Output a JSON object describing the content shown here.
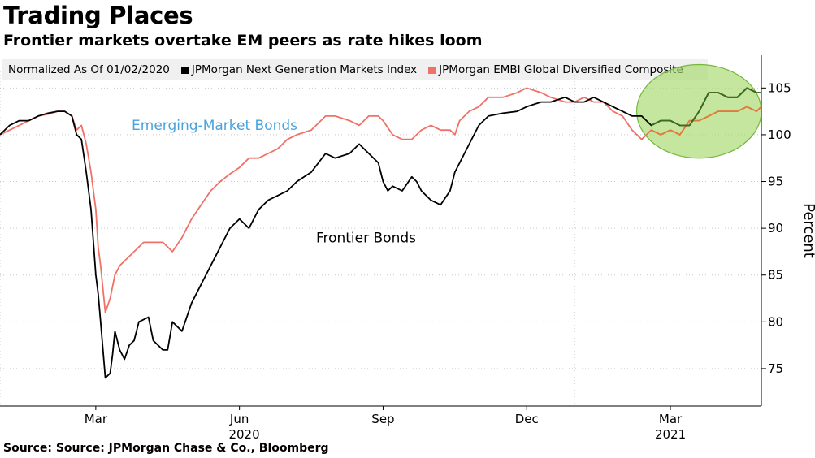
{
  "title": "Trading Places",
  "subtitle": "Frontier markets overtake EM peers as rate hikes loom",
  "source": "Source: Source: JPMorgan Chase & Co., Bloomberg",
  "legend": {
    "note": "Normalized As Of 01/02/2020",
    "items": [
      {
        "label": "JPMorgan Next Generation Markets Index",
        "color": "#000000"
      },
      {
        "label": "JPMorgan EMBI Global Diversified Composite",
        "color": "#f07167"
      }
    ]
  },
  "colors": {
    "frontier": "#000000",
    "em": "#f07167",
    "em_annotation": "#4aa3df",
    "highlight_fill": "#a6d96a",
    "highlight_stroke": "#74b83a",
    "frontier_highlighted": "#3d6b1f",
    "em_highlighted": "#e07b39"
  },
  "chart_data": {
    "type": "line",
    "title": "Trading Places",
    "subtitle": "Frontier markets overtake EM peers as rate hikes loom",
    "ylabel": "Percent",
    "ylim": [
      71,
      108.5
    ],
    "y_ticks": [
      75,
      80,
      85,
      90,
      95,
      100,
      105
    ],
    "y_axis_position": "right",
    "grid": "horizontal dotted",
    "x_unit": "months since 2020-01-01",
    "xlim": [
      0,
      15.9
    ],
    "x_ticks": [
      {
        "x": 2,
        "label": "Mar",
        "year": "2020"
      },
      {
        "x": 5,
        "label": "Jun",
        "year": ""
      },
      {
        "x": 8,
        "label": "Sep",
        "year": ""
      },
      {
        "x": 11,
        "label": "Dec",
        "year": ""
      },
      {
        "x": 14,
        "label": "Mar",
        "year": "2021"
      }
    ],
    "vertical_gridlines_x": [
      0,
      12
    ],
    "annotations": [
      {
        "text": "Emerging-Market Bonds",
        "series": "em",
        "x": 2.75,
        "y": 100.5
      },
      {
        "text": "Frontier Bonds",
        "series": "frontier",
        "x": 6.6,
        "y": 88.5
      }
    ],
    "highlight": {
      "shape": "ellipse",
      "x_range": [
        13.5,
        16.2
      ],
      "y_range": [
        97.5,
        107.5
      ]
    },
    "series": [
      {
        "name": "JPMorgan Next Generation Markets Index",
        "key": "frontier",
        "x": [
          0.0,
          0.2,
          0.4,
          0.6,
          0.8,
          1.0,
          1.2,
          1.35,
          1.5,
          1.6,
          1.7,
          1.8,
          1.9,
          2.0,
          2.05,
          2.1,
          2.2,
          2.3,
          2.35,
          2.4,
          2.5,
          2.6,
          2.7,
          2.8,
          2.9,
          3.1,
          3.2,
          3.4,
          3.5,
          3.6,
          3.8,
          4.0,
          4.2,
          4.4,
          4.6,
          4.8,
          5.0,
          5.2,
          5.4,
          5.6,
          5.8,
          6.0,
          6.2,
          6.5,
          6.8,
          7.0,
          7.3,
          7.5,
          7.7,
          7.9,
          8.0,
          8.1,
          8.2,
          8.4,
          8.6,
          8.7,
          8.8,
          9.0,
          9.2,
          9.4,
          9.5,
          9.6,
          9.8,
          10.0,
          10.2,
          10.5,
          10.8,
          11.0,
          11.3,
          11.5,
          11.8,
          12.0,
          12.2,
          12.4,
          12.6,
          12.8,
          13.0,
          13.2,
          13.4,
          13.6,
          13.8,
          14.0,
          14.2,
          14.4,
          14.6,
          14.8,
          15.0,
          15.2,
          15.4,
          15.6,
          15.8,
          15.9
        ],
        "values": [
          100,
          101,
          101.5,
          101.5,
          102,
          102.3,
          102.5,
          102.5,
          102,
          100,
          99.5,
          96,
          92,
          85,
          83,
          80,
          74,
          74.5,
          76.5,
          79,
          77,
          76,
          77.5,
          78,
          80,
          80.5,
          78,
          77,
          77,
          80,
          79,
          82,
          84,
          86,
          88,
          90,
          91,
          90,
          92,
          93,
          93.5,
          94,
          95,
          96,
          98,
          97.5,
          98,
          99,
          98,
          97,
          95,
          94,
          94.5,
          94,
          95.5,
          95,
          94,
          93,
          92.5,
          94,
          96,
          97,
          99,
          101,
          102,
          102.3,
          102.5,
          103,
          103.5,
          103.5,
          104,
          103.5,
          103.5,
          104,
          103.5,
          103,
          102.5,
          102,
          102,
          101,
          101.5,
          101.5,
          101,
          101,
          102.5,
          104.5,
          104.5,
          104,
          104,
          105,
          104.5,
          104.5
        ]
      },
      {
        "name": "JPMorgan EMBI Global Diversified Composite",
        "key": "em",
        "x": [
          0.0,
          0.2,
          0.4,
          0.6,
          0.8,
          1.0,
          1.2,
          1.35,
          1.5,
          1.6,
          1.7,
          1.8,
          1.9,
          2.0,
          2.05,
          2.1,
          2.2,
          2.3,
          2.4,
          2.5,
          2.6,
          2.8,
          3.0,
          3.2,
          3.4,
          3.6,
          3.8,
          4.0,
          4.2,
          4.4,
          4.6,
          4.8,
          5.0,
          5.2,
          5.4,
          5.6,
          5.8,
          6.0,
          6.2,
          6.5,
          6.8,
          7.0,
          7.3,
          7.5,
          7.7,
          7.9,
          8.0,
          8.2,
          8.4,
          8.6,
          8.8,
          9.0,
          9.2,
          9.4,
          9.5,
          9.6,
          9.8,
          10.0,
          10.2,
          10.5,
          10.8,
          11.0,
          11.3,
          11.5,
          11.8,
          12.0,
          12.2,
          12.4,
          12.6,
          12.8,
          13.0,
          13.2,
          13.4,
          13.6,
          13.8,
          14.0,
          14.2,
          14.4,
          14.6,
          14.8,
          15.0,
          15.2,
          15.4,
          15.6,
          15.8,
          15.9
        ],
        "values": [
          100,
          100.5,
          101,
          101.5,
          102,
          102.2,
          102.5,
          102.5,
          102,
          100.5,
          101,
          99,
          96,
          92,
          88,
          86,
          81,
          82.5,
          85,
          86,
          86.5,
          87.5,
          88.5,
          88.5,
          88.5,
          87.5,
          89,
          91,
          92.5,
          94,
          95,
          95.8,
          96.5,
          97.5,
          97.5,
          98,
          98.5,
          99.5,
          100,
          100.5,
          102,
          102,
          101.5,
          101,
          102,
          102,
          101.5,
          100,
          99.5,
          99.5,
          100.5,
          101,
          100.5,
          100.5,
          100,
          101.5,
          102.5,
          103,
          104,
          104,
          104.5,
          105,
          104.5,
          104,
          103.5,
          103.5,
          104,
          103.5,
          103.5,
          102.5,
          102,
          100.5,
          99.5,
          100.5,
          100,
          100.5,
          100,
          101.5,
          101.5,
          102,
          102.5,
          102.5,
          102.5,
          103,
          102.5,
          103
        ]
      }
    ]
  }
}
